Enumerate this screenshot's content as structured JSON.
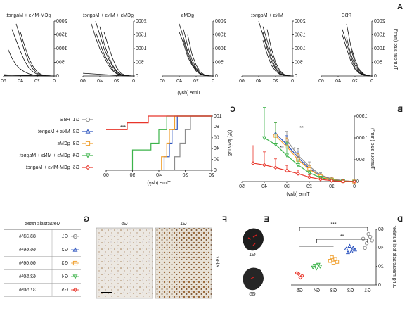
{
  "panels": {
    "a": "A",
    "b": "B",
    "c": "C",
    "d": "D",
    "e": "E",
    "f": "F",
    "g": "G"
  },
  "panel_a": {
    "ylabel": "Tumour size (mm³)",
    "xlabel": "Time (day)"
  },
  "chart_data": [
    {
      "type": "line",
      "title": "PBS",
      "color": "#111111",
      "x": [
        0,
        5,
        10,
        15,
        20,
        25,
        30,
        35,
        40,
        45,
        50,
        55,
        60
      ],
      "xlim": [
        0,
        60
      ],
      "ylim": [
        0,
        2000
      ],
      "xticks": [
        0,
        20,
        40,
        60
      ],
      "yticks": [
        0,
        500,
        1000,
        1500,
        2000
      ],
      "series": [
        {
          "values": [
            0,
            20,
            80,
            250,
            600,
            1100,
            1900,
            null,
            null,
            null,
            null,
            null,
            null
          ]
        },
        {
          "values": [
            0,
            10,
            50,
            150,
            400,
            800,
            1400,
            null,
            null,
            null,
            null,
            null,
            null
          ]
        },
        {
          "values": [
            0,
            15,
            60,
            200,
            500,
            1000,
            null,
            null,
            null,
            null,
            null,
            null,
            null
          ]
        },
        {
          "values": [
            0,
            10,
            40,
            120,
            300,
            700,
            1200,
            1700,
            null,
            null,
            null,
            null,
            null
          ]
        },
        {
          "values": [
            0,
            5,
            30,
            100,
            250,
            550,
            1000,
            1500,
            null,
            null,
            null,
            null,
            null
          ]
        }
      ]
    },
    {
      "type": "line",
      "title": "MNs + Magnet",
      "color": "#111111",
      "x": [
        0,
        5,
        10,
        15,
        20,
        25,
        30,
        35,
        40,
        45,
        50,
        55,
        60
      ],
      "xlim": [
        0,
        60
      ],
      "ylim": [
        0,
        2000
      ],
      "xticks": [
        0,
        20,
        40,
        60
      ],
      "yticks": [
        0,
        500,
        1000,
        1500,
        2000
      ],
      "series": [
        {
          "values": [
            0,
            10,
            40,
            150,
            400,
            800,
            1300,
            1800,
            null,
            null,
            null,
            null,
            null
          ]
        },
        {
          "values": [
            0,
            10,
            30,
            100,
            300,
            650,
            1100,
            1600,
            null,
            null,
            null,
            null,
            null
          ]
        },
        {
          "values": [
            0,
            5,
            25,
            80,
            250,
            550,
            1000,
            1500,
            2000,
            null,
            null,
            null,
            null
          ]
        },
        {
          "values": [
            0,
            15,
            60,
            200,
            500,
            1000,
            1700,
            null,
            null,
            null,
            null,
            null,
            null
          ]
        },
        {
          "values": [
            0,
            5,
            20,
            60,
            180,
            400,
            800,
            1300,
            null,
            null,
            null,
            null,
            null
          ]
        }
      ]
    },
    {
      "type": "line",
      "title": "gCMs",
      "color": "#111111",
      "x": [
        0,
        5,
        10,
        15,
        20,
        25,
        30,
        35,
        40,
        45,
        50,
        55,
        60
      ],
      "xlim": [
        0,
        60
      ],
      "ylim": [
        0,
        2000
      ],
      "xticks": [
        0,
        20,
        40,
        60
      ],
      "yticks": [
        0,
        500,
        1000,
        1500,
        2000
      ],
      "series": [
        {
          "values": [
            0,
            10,
            30,
            100,
            300,
            600,
            1100,
            1700,
            null,
            null,
            null,
            null,
            null
          ]
        },
        {
          "values": [
            0,
            5,
            20,
            80,
            250,
            500,
            900,
            1400,
            1900,
            null,
            null,
            null,
            null
          ]
        },
        {
          "values": [
            0,
            5,
            25,
            90,
            220,
            450,
            800,
            1300,
            null,
            null,
            null,
            null,
            null
          ]
        },
        {
          "values": [
            0,
            10,
            40,
            150,
            400,
            800,
            1500,
            null,
            null,
            null,
            null,
            null,
            null
          ]
        },
        {
          "values": [
            0,
            5,
            15,
            60,
            180,
            400,
            700,
            1200,
            1600,
            null,
            null,
            null,
            null
          ]
        }
      ]
    },
    {
      "type": "line",
      "title": "gCMs + MNs + Magnet",
      "color": "#111111",
      "x": [
        0,
        5,
        10,
        15,
        20,
        25,
        30,
        35,
        40,
        45,
        50,
        55,
        60
      ],
      "xlim": [
        0,
        60
      ],
      "ylim": [
        0,
        2000
      ],
      "xticks": [
        0,
        20,
        40,
        60
      ],
      "yticks": [
        0,
        500,
        1000,
        1500,
        2000
      ],
      "series": [
        {
          "values": [
            0,
            5,
            20,
            60,
            180,
            400,
            750,
            1200,
            1800,
            null,
            null,
            null,
            null
          ]
        },
        {
          "values": [
            0,
            5,
            15,
            50,
            150,
            350,
            650,
            1000,
            1500,
            2000,
            null,
            null,
            null
          ]
        },
        {
          "values": [
            0,
            5,
            10,
            40,
            100,
            250,
            500,
            800,
            1200,
            1600,
            null,
            null,
            null
          ]
        },
        {
          "values": [
            0,
            10,
            30,
            100,
            300,
            650,
            1100,
            1600,
            null,
            null,
            null,
            null,
            null
          ]
        },
        {
          "values": [
            0,
            5,
            10,
            30,
            80,
            200,
            400,
            700,
            1000,
            1400,
            1900,
            null,
            null
          ]
        },
        {
          "values": [
            0,
            2,
            5,
            10,
            20,
            30,
            40,
            50,
            60,
            70,
            80,
            90,
            100
          ]
        }
      ]
    },
    {
      "type": "line",
      "title": "gCM-MNs + Magnet",
      "color": "#111111",
      "x": [
        0,
        5,
        10,
        15,
        20,
        25,
        30,
        35,
        40,
        45,
        50,
        55,
        60
      ],
      "xlim": [
        0,
        60
      ],
      "ylim": [
        0,
        2000
      ],
      "xticks": [
        0,
        20,
        40,
        60
      ],
      "yticks": [
        0,
        500,
        1000,
        1500,
        2000
      ],
      "series": [
        {
          "values": [
            0,
            5,
            15,
            50,
            150,
            350,
            650,
            1100,
            1600,
            null,
            null,
            null,
            null
          ]
        },
        {
          "values": [
            0,
            5,
            10,
            30,
            100,
            250,
            500,
            900,
            1400,
            1900,
            null,
            null,
            null
          ]
        },
        {
          "values": [
            0,
            5,
            10,
            20,
            60,
            150,
            300,
            550,
            900,
            1300,
            1700,
            null,
            null
          ]
        },
        {
          "values": [
            0,
            2,
            5,
            10,
            20,
            40,
            80,
            150,
            250,
            400,
            650,
            1000,
            null
          ]
        },
        {
          "values": [
            0,
            2,
            4,
            6,
            8,
            10,
            15,
            20,
            25,
            30,
            35,
            40,
            50
          ]
        },
        {
          "values": [
            0,
            1,
            2,
            3,
            4,
            5,
            6,
            7,
            8,
            9,
            10,
            12,
            15
          ]
        }
      ]
    },
    {
      "type": "errorline",
      "xlabel": "Time (day)",
      "ylabel": "Tumour size (mm³)",
      "x": [
        0,
        5,
        10,
        15,
        20,
        25,
        30,
        35,
        40,
        45,
        50
      ],
      "xlim": [
        0,
        50
      ],
      "ylim": [
        0,
        1500
      ],
      "xticks": [
        0,
        10,
        20,
        30,
        40,
        50
      ],
      "yticks": [
        0,
        500,
        1000,
        1500
      ],
      "annotations": [
        "**",
        "*",
        "**"
      ],
      "series": [
        {
          "color": "#8c8c8c",
          "marker": "circle",
          "values": [
            0,
            20,
            60,
            150,
            350,
            600,
            950,
            null,
            null,
            null,
            null
          ],
          "errors": [
            0,
            10,
            20,
            50,
            100,
            150,
            200,
            null,
            null,
            null,
            null
          ]
        },
        {
          "color": "#2a52be",
          "marker": "triangle",
          "values": [
            0,
            15,
            50,
            130,
            300,
            550,
            850,
            1100,
            null,
            null,
            null
          ],
          "errors": [
            0,
            10,
            20,
            40,
            80,
            150,
            200,
            250,
            null,
            null,
            null
          ]
        },
        {
          "color": "#f0a030",
          "marker": "square",
          "values": [
            0,
            15,
            45,
            120,
            280,
            500,
            800,
            1050,
            null,
            null,
            null
          ],
          "errors": [
            0,
            10,
            15,
            40,
            80,
            140,
            200,
            300,
            null,
            null,
            null
          ]
        },
        {
          "color": "#3cb34a",
          "marker": "triangle-down",
          "values": [
            0,
            10,
            35,
            90,
            200,
            380,
            600,
            850,
            1000,
            null,
            null
          ],
          "errors": [
            0,
            5,
            15,
            30,
            60,
            120,
            300,
            500,
            700,
            null,
            null
          ]
        },
        {
          "color": "#e8352a",
          "marker": "diamond",
          "values": [
            0,
            5,
            20,
            50,
            100,
            180,
            250,
            320,
            380,
            420,
            null
          ],
          "errors": [
            0,
            5,
            10,
            20,
            50,
            80,
            120,
            200,
            300,
            400,
            null
          ]
        }
      ]
    },
    {
      "type": "step",
      "xlabel": "Time (day)",
      "ylabel": "Survival (%)",
      "xlim": [
        20,
        60
      ],
      "ylim": [
        0,
        100
      ],
      "xticks": [
        20,
        30,
        40,
        50,
        60
      ],
      "yticks": [
        0,
        20,
        40,
        60,
        80,
        100
      ],
      "annotations": [
        "***"
      ],
      "series": [
        {
          "name": "G1: PBS",
          "color": "#8c8c8c",
          "marker": "circle",
          "x": [
            20,
            28,
            28,
            30,
            30,
            32,
            32,
            34,
            34
          ],
          "values": [
            100,
            100,
            75,
            75,
            50,
            50,
            25,
            25,
            0
          ]
        },
        {
          "name": "G2: MNs + Magnet",
          "color": "#2a52be",
          "marker": "triangle",
          "x": [
            20,
            33,
            33,
            35,
            35,
            36,
            36,
            38,
            38
          ],
          "values": [
            100,
            100,
            75,
            75,
            50,
            50,
            25,
            25,
            0
          ]
        },
        {
          "name": "G3: gCMs",
          "color": "#f0a030",
          "marker": "square",
          "x": [
            20,
            34,
            34,
            36,
            36,
            37,
            37,
            39,
            39
          ],
          "values": [
            100,
            100,
            75,
            75,
            50,
            50,
            25,
            25,
            0
          ]
        },
        {
          "name": "G4: gCMs + MNs + Magnet",
          "color": "#3cb34a",
          "marker": "triangle-down",
          "x": [
            20,
            37,
            37,
            40,
            40,
            43,
            43,
            50,
            50
          ],
          "values": [
            100,
            100,
            75,
            75,
            50,
            50,
            37.5,
            37.5,
            0
          ]
        },
        {
          "name": "G5: gCM-MNs + Magnet",
          "color": "#e8352a",
          "marker": "diamond",
          "x": [
            20,
            44,
            44,
            52,
            52,
            60
          ],
          "values": [
            100,
            100,
            87.5,
            87.5,
            75,
            75
          ]
        }
      ]
    },
    {
      "type": "strip",
      "ylabel": "Lung metastasis foci number",
      "categories": [
        "G1",
        "G2",
        "G3",
        "G4",
        "G5"
      ],
      "ylim": [
        0,
        60
      ],
      "yticks": [
        0,
        20,
        40,
        60
      ],
      "colors": [
        "#8c8c8c",
        "#2a52be",
        "#f0a030",
        "#3cb34a",
        "#e8352a"
      ],
      "markers": [
        "circle",
        "triangle",
        "square",
        "triangle-down",
        "diamond"
      ],
      "annotations": [
        "***",
        "**"
      ],
      "values": [
        [
          48,
          52,
          55,
          45,
          40,
          50
        ],
        [
          38,
          40,
          36,
          42,
          35,
          39
        ],
        [
          25,
          28,
          24,
          30,
          26
        ],
        [
          20,
          22,
          18,
          21,
          19
        ],
        [
          10,
          8,
          12,
          13
        ]
      ]
    }
  ],
  "panel_e": {
    "labels": [
      "G1",
      "G5"
    ]
  },
  "panel_f": {
    "labels": [
      "G1",
      "G5"
    ],
    "stain": "Ki-67"
  },
  "table": {
    "title": "Metastasis rates",
    "rows": [
      [
        "G1",
        "83.33%"
      ],
      [
        "G2",
        "66.66%"
      ],
      [
        "G3",
        "66.66%"
      ],
      [
        "G4",
        "62.50%"
      ],
      [
        "G5",
        "37.50%"
      ]
    ]
  }
}
